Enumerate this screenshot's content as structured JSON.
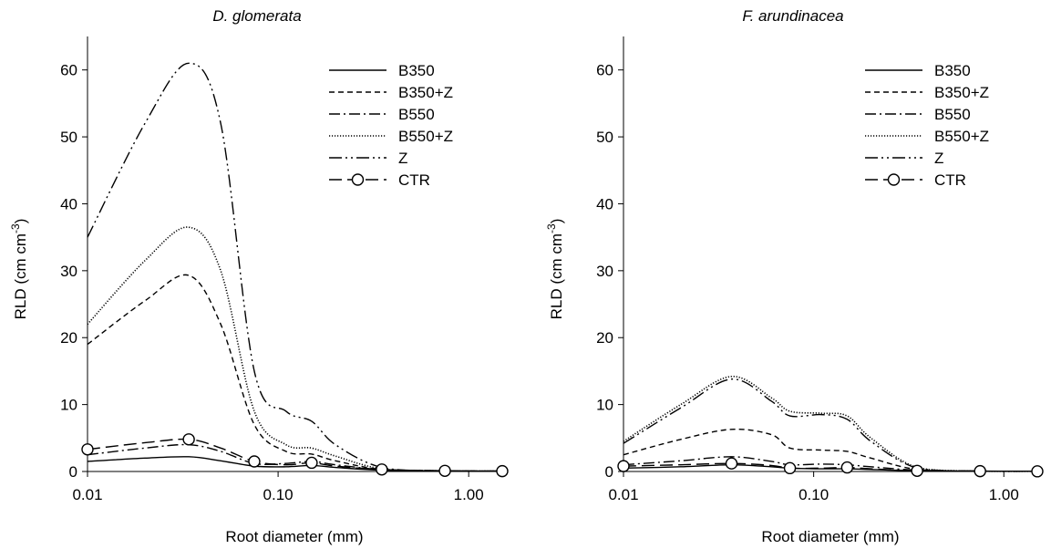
{
  "chart_data": [
    {
      "type": "line",
      "title": "D. glomerata",
      "xlabel": "Root diameter (mm)",
      "ylabel_main": "RLD (cm cm",
      "ylabel_sup": "-3",
      "ylabel_close": ")",
      "xscale": "log",
      "xlim": [
        0.01,
        1.5
      ],
      "ylim": [
        0,
        65
      ],
      "xticks": [
        0.01,
        0.1,
        1.0
      ],
      "xtick_labels": [
        "0.01",
        "0.10",
        "1.00"
      ],
      "yticks": [
        0,
        10,
        20,
        30,
        40,
        50,
        60
      ],
      "ytick_labels": [
        "0",
        "10",
        "20",
        "30",
        "40",
        "50",
        "60"
      ],
      "grid": false,
      "legend_position": "top-right",
      "x": [
        0.01,
        0.02,
        0.034,
        0.05,
        0.075,
        0.11,
        0.15,
        0.2,
        0.35,
        0.75,
        1.5
      ],
      "series": [
        {
          "name": "B350",
          "style": "solid",
          "values": [
            1.5,
            2.0,
            2.2,
            1.6,
            0.8,
            0.7,
            0.9,
            0.6,
            0.2,
            0.1,
            0.05
          ]
        },
        {
          "name": "B350+Z",
          "style": "dashed",
          "values": [
            19.0,
            25.5,
            29.3,
            22.0,
            7.0,
            3.0,
            2.6,
            1.6,
            0.3,
            0.1,
            0.05
          ]
        },
        {
          "name": "B550",
          "style": "dashdot",
          "values": [
            2.5,
            3.5,
            4.0,
            3.0,
            1.2,
            1.2,
            1.5,
            1.0,
            0.3,
            0.1,
            0.05
          ]
        },
        {
          "name": "B550+Z",
          "style": "dotted",
          "values": [
            22.0,
            31.5,
            36.5,
            30.0,
            9.0,
            4.0,
            3.5,
            2.3,
            0.4,
            0.1,
            0.05
          ]
        },
        {
          "name": "Z",
          "style": "dashdotdot",
          "values": [
            35.0,
            52.0,
            61.0,
            52.0,
            15.0,
            9.0,
            7.5,
            4.0,
            0.6,
            0.1,
            0.05
          ]
        },
        {
          "name": "CTR",
          "style": "longdash-circle",
          "marker_x": [
            0.01,
            0.034,
            0.075,
            0.15,
            0.35,
            0.75,
            1.5
          ],
          "values": [
            3.3,
            4.3,
            4.8,
            3.5,
            1.5,
            1.0,
            1.3,
            0.8,
            0.3,
            0.1,
            0.05
          ]
        }
      ]
    },
    {
      "type": "line",
      "title": "F. arundinacea",
      "xlabel": "Root diameter (mm)",
      "ylabel_main": "RLD (cm cm",
      "ylabel_sup": "-3",
      "ylabel_close": ")",
      "xscale": "log",
      "xlim": [
        0.01,
        1.5
      ],
      "ylim": [
        0,
        65
      ],
      "xticks": [
        0.01,
        0.1,
        1.0
      ],
      "xtick_labels": [
        "0.01",
        "0.10",
        "1.00"
      ],
      "yticks": [
        0,
        10,
        20,
        30,
        40,
        50,
        60
      ],
      "ytick_labels": [
        "0",
        "10",
        "20",
        "30",
        "40",
        "50",
        "60"
      ],
      "grid": false,
      "legend_position": "top-right",
      "x": [
        0.01,
        0.02,
        0.037,
        0.06,
        0.075,
        0.11,
        0.15,
        0.2,
        0.35,
        0.75,
        1.5
      ],
      "series": [
        {
          "name": "B350",
          "style": "solid",
          "values": [
            0.5,
            0.7,
            1.0,
            0.7,
            0.5,
            0.4,
            0.4,
            0.3,
            0.1,
            0.05,
            0.02
          ]
        },
        {
          "name": "B350+Z",
          "style": "dashed",
          "values": [
            2.5,
            4.8,
            6.3,
            5.5,
            3.5,
            3.2,
            3.0,
            2.0,
            0.3,
            0.05,
            0.02
          ]
        },
        {
          "name": "B550",
          "style": "dashdot",
          "values": [
            1.0,
            1.6,
            2.2,
            1.5,
            1.0,
            1.1,
            1.0,
            0.7,
            0.2,
            0.05,
            0.02
          ]
        },
        {
          "name": "B550+Z",
          "style": "dotted",
          "values": [
            4.5,
            10.0,
            14.2,
            11.0,
            9.0,
            8.7,
            8.3,
            5.0,
            0.6,
            0.05,
            0.02
          ]
        },
        {
          "name": "Z",
          "style": "dashdotdot",
          "values": [
            4.2,
            9.5,
            13.8,
            10.5,
            8.3,
            8.5,
            7.8,
            4.5,
            0.5,
            0.05,
            0.02
          ]
        },
        {
          "name": "CTR",
          "style": "longdash-circle",
          "marker_x": [
            0.01,
            0.037,
            0.075,
            0.15,
            0.35,
            0.75,
            1.5
          ],
          "values": [
            0.8,
            1.0,
            1.2,
            0.9,
            0.5,
            0.5,
            0.6,
            0.4,
            0.1,
            0.05,
            0.02
          ]
        }
      ]
    }
  ]
}
